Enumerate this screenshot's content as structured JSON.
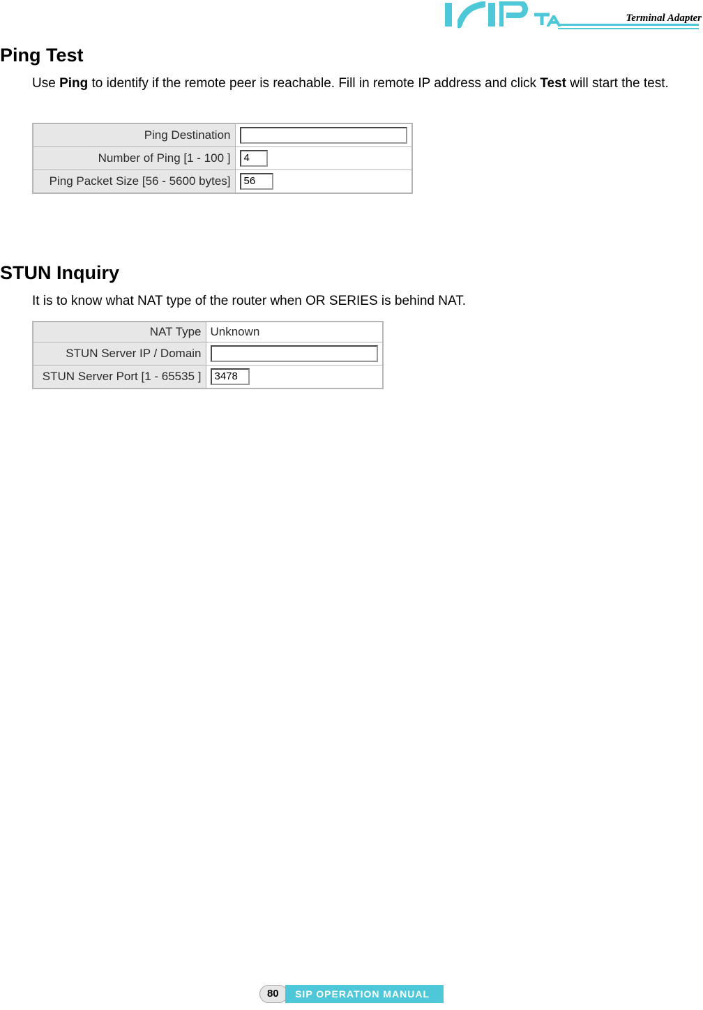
{
  "header": {
    "product_label": "Terminal Adapter",
    "logo_cyan": "#4ec8d8"
  },
  "sections": {
    "ping": {
      "heading": "Ping Test",
      "para_pre": "Use ",
      "para_b1": "Ping",
      "para_mid": " to identify if the remote peer is reachable. Fill in remote IP address and click ",
      "para_b2": "Test",
      "para_post": " will start the test.",
      "table": {
        "label_col_width": 290,
        "value_col_width": 250,
        "rows": [
          {
            "label": "Ping Destination",
            "value": "",
            "input_width": 240
          },
          {
            "label": "Number of Ping [1 - 100 ]",
            "value": "4",
            "input_width": 40
          },
          {
            "label": "Ping Packet Size [56 - 5600 bytes]",
            "value": "56",
            "input_width": 48
          }
        ],
        "label_bg": "#e7e7e7",
        "border_color": "#b5b5b5",
        "font_size": 17
      }
    },
    "stun": {
      "heading": "STUN Inquiry",
      "para": "It is to know what NAT type of the router when OR SERIES is behind NAT.",
      "table": {
        "label_col_width": 248,
        "value_col_width": 250,
        "rows": [
          {
            "label": "NAT Type",
            "value": "Unknown",
            "is_text": true
          },
          {
            "label": "STUN Server IP / Domain",
            "value": "",
            "input_width": 240
          },
          {
            "label": "STUN Server Port [1 - 65535 ]",
            "value": "3478",
            "input_width": 56
          }
        ],
        "label_bg": "#e7e7e7",
        "border_color": "#b5b5b5",
        "font_size": 17
      }
    }
  },
  "footer": {
    "page_number": "80",
    "title": "SIP OPERATION MANUAL",
    "bar_color": "#4ec8d8",
    "pill_bg": "#e7e7e7"
  },
  "typography": {
    "heading_fontsize": 27,
    "body_fontsize": 19,
    "body_color": "#000000"
  }
}
